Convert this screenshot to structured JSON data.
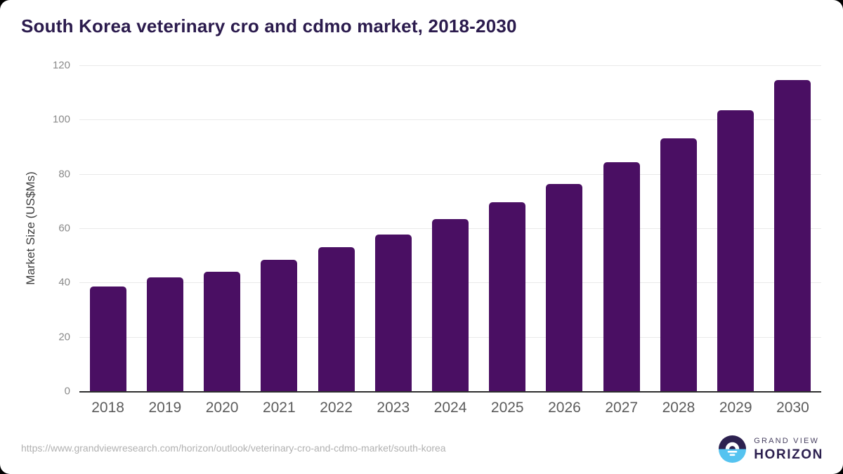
{
  "title": "South Korea veterinary cro and cdmo market, 2018-2030",
  "chart_data": {
    "type": "bar",
    "title": "South Korea veterinary cro and cdmo market, 2018-2030",
    "categories": [
      "2018",
      "2019",
      "2020",
      "2021",
      "2022",
      "2023",
      "2024",
      "2025",
      "2026",
      "2027",
      "2028",
      "2029",
      "2030"
    ],
    "values": [
      38.5,
      41.8,
      43.9,
      48.3,
      52.9,
      57.8,
      63.3,
      69.5,
      76.3,
      84.3,
      93.2,
      103.4,
      114.7
    ],
    "xlabel": "",
    "ylabel": "Market Size (US$Ms)",
    "ylim": [
      0,
      120
    ],
    "yticks": [
      0,
      20,
      40,
      60,
      80,
      100,
      120
    ],
    "grid": "horizontal",
    "legend": "none",
    "bar_color": "#4a0f63"
  },
  "footer": {
    "source_url": "https://www.grandviewresearch.com/horizon/outlook/veterinary-cro-and-cdmo-market/south-korea",
    "logo": {
      "line1": "GRAND VIEW",
      "line2": "HORIZON"
    }
  },
  "colors": {
    "bar": "#4a0f63",
    "title": "#2b1b4d",
    "axis_line": "#2e2e2e",
    "gridline": "#e9e9e9",
    "tick_label": "#8a8a8a",
    "x_label": "#5c5c5c",
    "y_title": "#3d3d3d",
    "url_text": "#b1b1b1",
    "logo_purple": "#2d2150",
    "logo_blue": "#55c3f0",
    "logo_gray_purple": "#474060"
  }
}
